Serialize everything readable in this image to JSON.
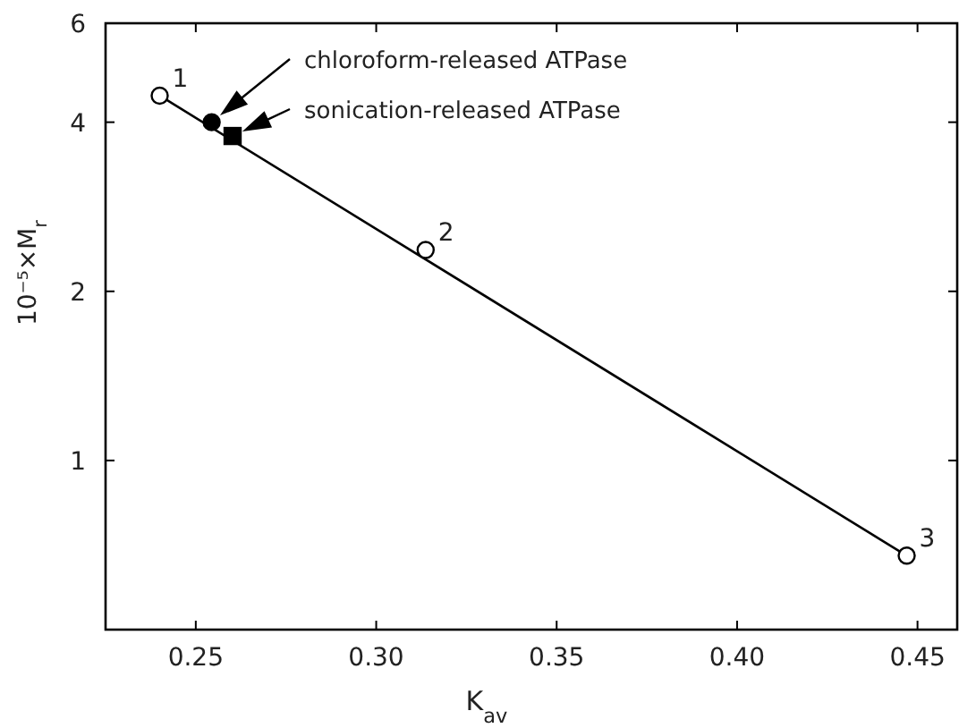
{
  "chart_data": {
    "type": "scatter",
    "xlabel": "K$_{av}$",
    "ylabel": "10⁻⁵×M$_{r}$",
    "log": "y",
    "xlim": [
      0.225,
      0.461
    ],
    "xticks": [
      {
        "value": 0.25,
        "label": "0.25"
      },
      {
        "value": 0.3,
        "label": "0.30"
      },
      {
        "value": 0.35,
        "label": "0.35"
      },
      {
        "value": 0.4,
        "label": "0.40"
      },
      {
        "value": 0.45,
        "label": "0.45"
      }
    ],
    "ylim": [
      0.5,
      6
    ],
    "yticks": [
      1,
      2,
      4,
      6
    ],
    "grid": false,
    "series": [
      {
        "type": "line",
        "color": "#000000",
        "x": [
          0.24,
          0.447
        ],
        "values": [
          4.46,
          0.677
        ],
        "marker": "none",
        "line_style": "solid"
      },
      {
        "type": "scatter",
        "color": "#ffffff",
        "x": [
          0.24,
          0.3137,
          0.447
        ],
        "values": [
          4.46,
          2.37,
          0.677
        ],
        "marker": "circle"
      },
      {
        "color": "#000000",
        "x": [
          0.2544
        ],
        "values": [
          4.0
        ],
        "marker": "circle"
      },
      {
        "color": "#000000",
        "x": [
          0.2602
        ],
        "values": [
          3.78
        ],
        "marker": "square"
      }
    ],
    "annotations": [
      {
        "text": "1",
        "x": 0.24,
        "y": 4.46
      },
      {
        "text": "2",
        "x": 0.3137,
        "y": 2.37
      },
      {
        "text": "3",
        "x": 0.447,
        "y": 0.677
      },
      "chloroform-released ATPase",
      "sonication-released ATPase"
    ]
  }
}
